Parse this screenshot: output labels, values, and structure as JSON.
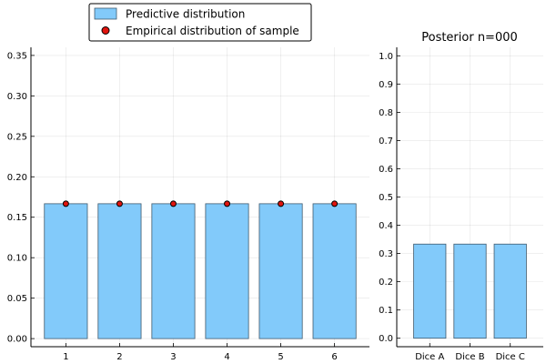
{
  "colors": {
    "bar_fill": "#82cafa",
    "bar_stroke": "#3f5a6e",
    "point_fill": "#e0140e",
    "point_stroke": "#000000"
  },
  "chart_data": [
    {
      "type": "bar",
      "title": "",
      "xlabel": "",
      "ylabel": "",
      "categories": [
        "1",
        "2",
        "3",
        "4",
        "5",
        "6"
      ],
      "ylim": [
        -0.01,
        0.36
      ],
      "yticks": [
        "0.00",
        "0.05",
        "0.10",
        "0.15",
        "0.20",
        "0.25",
        "0.30",
        "0.35"
      ],
      "grid": true,
      "legend_placement": "top",
      "series": [
        {
          "name": "Predictive distribution",
          "kind": "bar",
          "values": [
            0.1667,
            0.1667,
            0.1667,
            0.1667,
            0.1667,
            0.1667
          ]
        },
        {
          "name": "Empirical distribution of sample",
          "kind": "scatter",
          "values": [
            0.1667,
            0.1667,
            0.1667,
            0.1667,
            0.1667,
            0.1667
          ]
        }
      ]
    },
    {
      "type": "bar",
      "title": "Posterior n=000",
      "xlabel": "",
      "ylabel": "",
      "categories": [
        "Dice A",
        "Dice B",
        "Dice C"
      ],
      "ylim": [
        -0.03,
        1.03
      ],
      "yticks": [
        "0.0",
        "0.1",
        "0.2",
        "0.3",
        "0.4",
        "0.5",
        "0.6",
        "0.7",
        "0.8",
        "0.9",
        "1.0"
      ],
      "grid": true,
      "values": [
        0.3333,
        0.3333,
        0.3333
      ]
    }
  ]
}
